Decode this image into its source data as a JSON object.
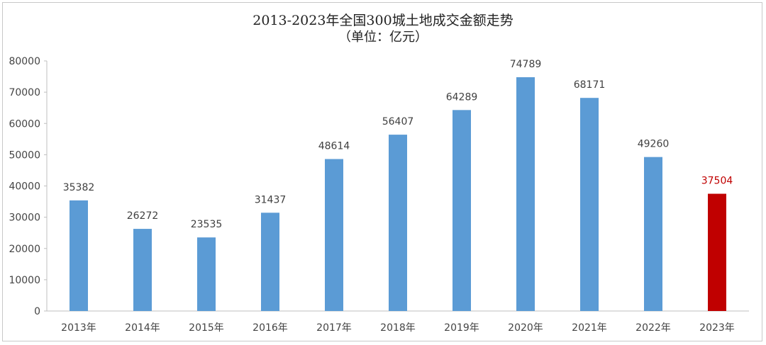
{
  "chart_data": {
    "type": "bar",
    "title": "2013-2023年全国300城土地成交金额走势",
    "subtitle": "（单位：亿元）",
    "categories": [
      "2013年",
      "2014年",
      "2015年",
      "2016年",
      "2017年",
      "2018年",
      "2019年",
      "2020年",
      "2021年",
      "2022年",
      "2023年"
    ],
    "values": [
      35382,
      26272,
      23535,
      31437,
      48614,
      56407,
      64289,
      74789,
      68171,
      49260,
      37504
    ],
    "ylim": [
      0,
      80000
    ],
    "yticks": [
      0,
      10000,
      20000,
      30000,
      40000,
      50000,
      60000,
      70000,
      80000
    ],
    "grid": false,
    "legend": "none",
    "colors": {
      "bar": "#5b9bd5",
      "highlight_bar": "#c00000",
      "highlight_label": "#c00000",
      "label": "#404040"
    },
    "highlight_index": 10
  }
}
